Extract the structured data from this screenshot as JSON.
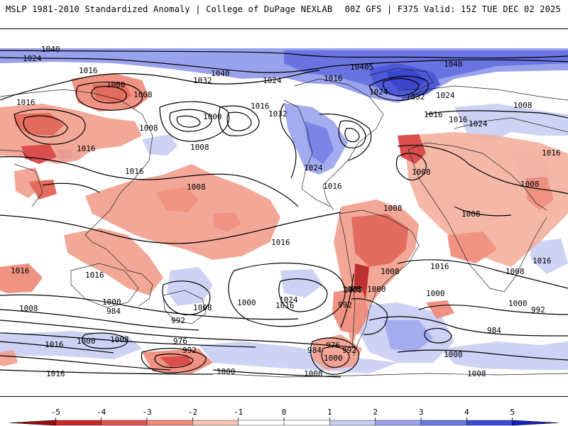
{
  "header": {
    "title_left": "MSLP 1981-2010 Standardized Anomaly | College of DuPage NEXLAB",
    "title_right": "00Z GFS | F375 Valid: 15Z TUE DEC 02 2025"
  },
  "colorbar": {
    "ticks": [
      "-5",
      "-4",
      "-3",
      "-2",
      "-1",
      "0",
      "1",
      "2",
      "3",
      "4",
      "5"
    ],
    "colors": [
      "#9e0a0a",
      "#cc2a2a",
      "#e3504c",
      "#f08a7a",
      "#f8c2b4",
      "#ffffff",
      "#ffffff",
      "#c8cdf4",
      "#9aa4ee",
      "#6c78e4",
      "#3e4ad8",
      "#1020c0"
    ]
  },
  "map": {
    "anomaly_colors": {
      "strong_pos": "#3a48d6",
      "pos": "#8e98ea",
      "weak_pos": "#c9cef4",
      "weak_neg": "#f8c2b4",
      "neg": "#ef8a78",
      "strong_neg": "#d94040"
    },
    "isobar_labels": [
      "1040",
      "1024",
      "1016",
      "1000",
      "1008",
      "1016",
      "1040",
      "1032",
      "1024",
      "1016",
      "10405",
      "1024",
      "1032",
      "1024",
      "1040",
      "1016",
      "1000",
      "1016",
      "1032",
      "1008",
      "1016",
      "1024",
      "1008",
      "1016",
      "1008",
      "1016",
      "1024",
      "1008",
      "1016",
      "1008",
      "1008",
      "1008",
      "1016",
      "1008",
      "1016",
      "1016",
      "1024",
      "1000",
      "1008",
      "1000",
      "1016",
      "1008",
      "1008",
      "1016",
      "1016",
      "1000",
      "1000",
      "1000",
      "984",
      "992",
      "992",
      "1008",
      "1008",
      "1016",
      "1008",
      "992",
      "976",
      "992",
      "1016",
      "1008",
      "1000",
      "1000",
      "1016",
      "1000",
      "984",
      "976",
      "992",
      "1008",
      "1000",
      "984",
      "1008"
    ]
  }
}
